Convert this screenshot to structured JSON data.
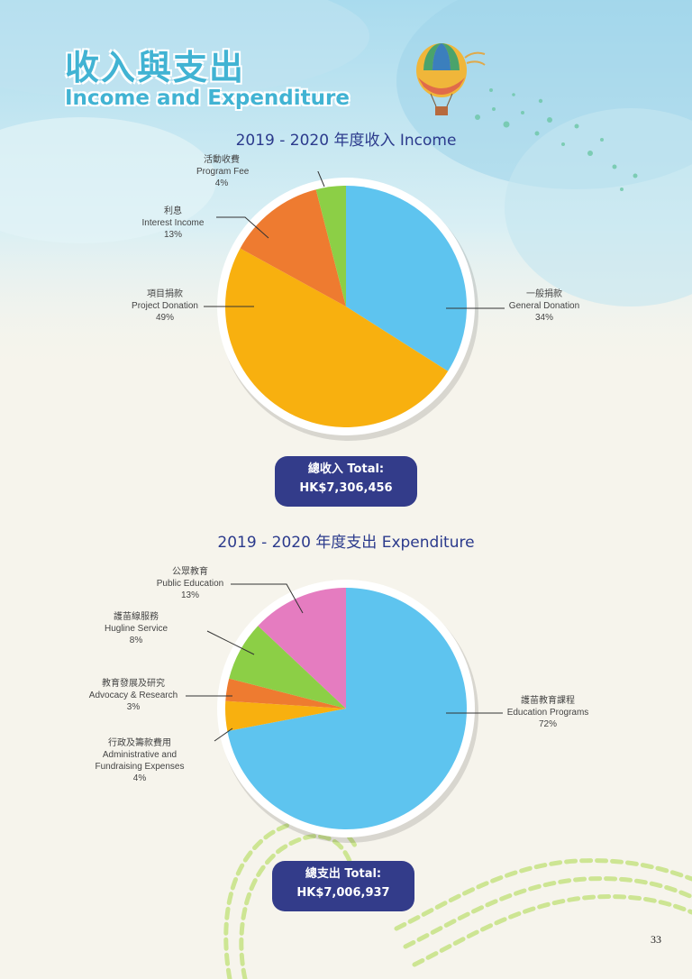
{
  "heading": {
    "title_zh": "收入與支出",
    "title_en": "Income and Expenditure"
  },
  "colors": {
    "general_donation": "#5ec4ef",
    "project_donation": "#f8b00f",
    "interest_income": "#ee7b30",
    "program_fee": "#8ccf46",
    "public_education": "#e57cc0",
    "heading": "#41b3d3",
    "title": "#2b3a8c",
    "total_box": "#333c8a"
  },
  "chart_data": [
    {
      "type": "pie",
      "title": "2019 - 2020 年度收入 Income",
      "slices": [
        {
          "name_zh": "一般捐款",
          "name_en": "General Donation",
          "pct_label": "34%",
          "value": 34,
          "color": "#5ec4ef"
        },
        {
          "name_zh": "項目捐款",
          "name_en": "Project Donation",
          "pct_label": "49%",
          "value": 49,
          "color": "#f8b00f"
        },
        {
          "name_zh": "利息",
          "name_en": "Interest Income",
          "pct_label": "13%",
          "value": 13,
          "color": "#ee7b30"
        },
        {
          "name_zh": "活動收費",
          "name_en": "Program Fee",
          "pct_label": "4%",
          "value": 4,
          "color": "#8ccf46"
        }
      ],
      "total_label": "總收入 Total:",
      "total_value": "HK$7,306,456"
    },
    {
      "type": "pie",
      "title": "2019 - 2020 年度支出 Expenditure",
      "slices": [
        {
          "name_zh": "護苗教育課程",
          "name_en": "Education Programs",
          "pct_label": "72%",
          "value": 72,
          "color": "#5ec4ef"
        },
        {
          "name_zh": "行政及籌款費用",
          "name_en": "Administrative and Fundraising Expenses",
          "pct_label": "4%",
          "value": 4,
          "color": "#f8b00f"
        },
        {
          "name_zh": "教育發展及研究",
          "name_en": "Advocacy & Research",
          "pct_label": "3%",
          "value": 3,
          "color": "#ee7b30"
        },
        {
          "name_zh": "護苗線服務",
          "name_en": "Hugline Service",
          "pct_label": "8%",
          "value": 8,
          "color": "#8ccf46"
        },
        {
          "name_zh": "公眾教育",
          "name_en": "Public Education",
          "pct_label": "13%",
          "value": 13,
          "color": "#e57cc0"
        }
      ],
      "total_label": "總支出 Total:",
      "total_value": "HK$7,006,937"
    }
  ],
  "page_number": "33"
}
